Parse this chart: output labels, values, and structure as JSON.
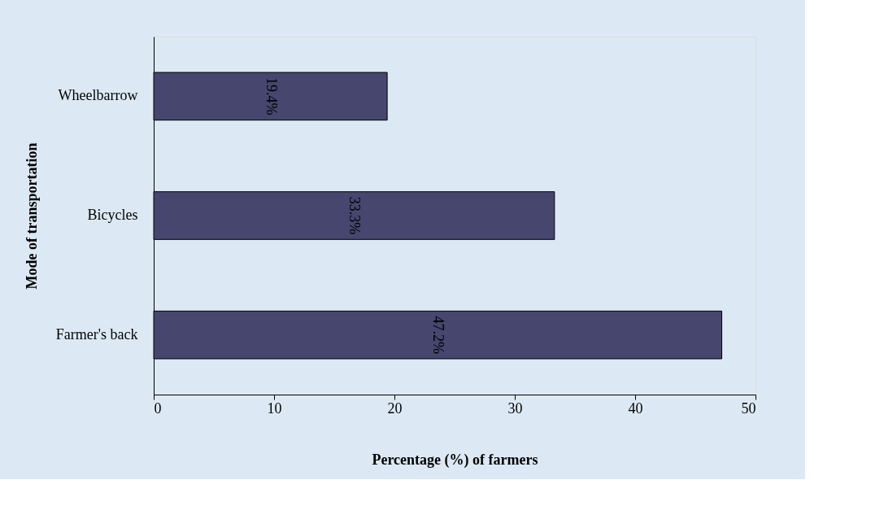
{
  "chart_data": {
    "type": "bar",
    "orientation": "horizontal",
    "xlabel": "Percentage (%) of farmers",
    "ylabel": "Mode of transportation",
    "categories": [
      "Wheelbarrow",
      "Bicycles",
      "Farmer's back"
    ],
    "values": [
      19.4,
      33.3,
      47.2
    ],
    "color": "#46466e",
    "value_labels": [
      "19.4%",
      "33.3%",
      "47.2%"
    ],
    "xlim": [
      0,
      50
    ],
    "xticks": [
      0,
      10,
      20,
      30,
      40,
      50
    ],
    "grid": false
  }
}
